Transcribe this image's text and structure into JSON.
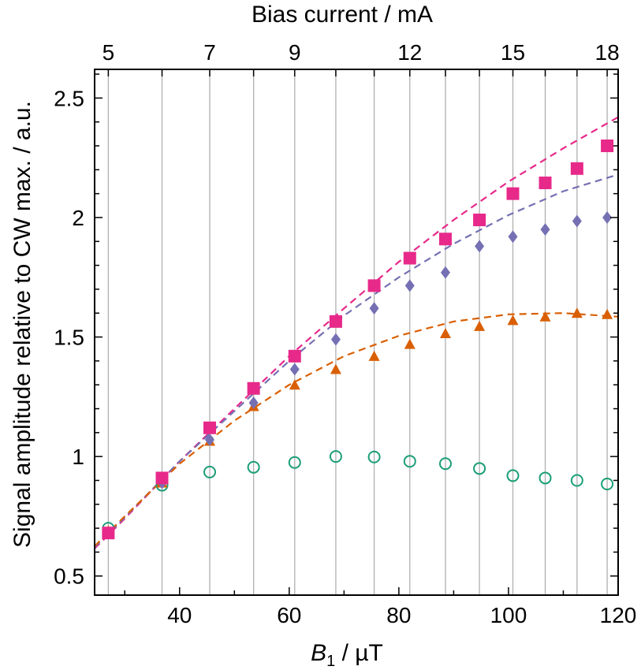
{
  "chart_data": {
    "type": "scatter",
    "title": "",
    "xlabel": "B",
    "xlabel_subscript": "1",
    "xlabel_unit": " / µT",
    "ylabel": "Signal amplitude relative to CW max. / a.u.",
    "top_xlabel": "Bias current / mA",
    "xlim": [
      24.5,
      120
    ],
    "ylim": [
      0.42,
      2.62
    ],
    "x_ticks": [
      40,
      60,
      80,
      100,
      120
    ],
    "x_tick_labels": [
      "40",
      "60",
      "80",
      "100",
      "120"
    ],
    "y_ticks": [
      0.5,
      1,
      1.5,
      2,
      2.5
    ],
    "y_tick_labels": [
      "0.5",
      "1",
      "1.5",
      "2",
      "2.5"
    ],
    "top_ticks": [
      {
        "x": 27.0,
        "label": "5"
      },
      {
        "x": 36.8,
        "label": ""
      },
      {
        "x": 45.5,
        "label": "7"
      },
      {
        "x": 53.5,
        "label": ""
      },
      {
        "x": 61.0,
        "label": "9"
      },
      {
        "x": 68.5,
        "label": ""
      },
      {
        "x": 75.5,
        "label": ""
      },
      {
        "x": 82.0,
        "label": "12"
      },
      {
        "x": 88.5,
        "label": ""
      },
      {
        "x": 94.7,
        "label": ""
      },
      {
        "x": 100.8,
        "label": "15"
      },
      {
        "x": 106.7,
        "label": ""
      },
      {
        "x": 112.5,
        "label": ""
      },
      {
        "x": 118.0,
        "label": "18"
      }
    ],
    "grid": "vertical at bias-current ticks",
    "series": [
      {
        "marker": "square",
        "color": "#e7298a",
        "x": [
          27.0,
          36.8,
          45.5,
          53.5,
          61.0,
          68.5,
          75.5,
          82.0,
          88.5,
          94.7,
          100.8,
          106.7,
          112.5,
          118.0
        ],
        "y": [
          0.68,
          0.91,
          1.12,
          1.285,
          1.42,
          1.565,
          1.715,
          1.83,
          1.91,
          1.99,
          2.1,
          2.145,
          2.205,
          2.3
        ],
        "fit_x": [
          24.5,
          30,
          40,
          50,
          60,
          70,
          80,
          90,
          100,
          110,
          120
        ],
        "fit_y": [
          0.615,
          0.74,
          0.98,
          1.2,
          1.42,
          1.62,
          1.815,
          1.99,
          2.15,
          2.29,
          2.42
        ]
      },
      {
        "marker": "diamond",
        "color": "#7570b3",
        "x": [
          27.0,
          36.8,
          45.5,
          53.5,
          61.0,
          68.5,
          75.5,
          82.0,
          88.5,
          94.7,
          100.8,
          106.7,
          112.5,
          118.0
        ],
        "y": [
          0.68,
          0.89,
          1.07,
          1.225,
          1.365,
          1.49,
          1.62,
          1.715,
          1.77,
          1.88,
          1.92,
          1.95,
          1.985,
          2.0
        ],
        "fit_x": [
          24.5,
          30,
          40,
          50,
          60,
          70,
          80,
          90,
          100,
          110,
          120
        ],
        "fit_y": [
          0.62,
          0.745,
          0.98,
          1.19,
          1.4,
          1.59,
          1.75,
          1.89,
          2.01,
          2.11,
          2.18
        ]
      },
      {
        "marker": "triangle",
        "color": "#d95f02",
        "x": [
          27.0,
          36.8,
          45.5,
          53.5,
          61.0,
          68.5,
          75.5,
          82.0,
          88.5,
          94.7,
          100.8,
          106.7,
          112.5,
          118.0
        ],
        "y": [
          0.69,
          0.89,
          1.065,
          1.21,
          1.3,
          1.365,
          1.42,
          1.47,
          1.515,
          1.545,
          1.57,
          1.585,
          1.6,
          1.595
        ],
        "fit_x": [
          24.5,
          30,
          40,
          50,
          60,
          70,
          80,
          90,
          100,
          110,
          120
        ],
        "fit_y": [
          0.625,
          0.75,
          0.97,
          1.15,
          1.3,
          1.42,
          1.505,
          1.565,
          1.595,
          1.6,
          1.585
        ]
      },
      {
        "marker": "circle-open",
        "color": "#1b9e77",
        "x": [
          27.0,
          36.8,
          45.5,
          53.5,
          61.0,
          68.5,
          75.5,
          82.0,
          88.5,
          94.7,
          100.8,
          106.7,
          112.5,
          118.0
        ],
        "y": [
          0.7,
          0.88,
          0.935,
          0.955,
          0.975,
          1.0,
          0.998,
          0.98,
          0.97,
          0.95,
          0.92,
          0.91,
          0.9,
          0.885
        ]
      }
    ]
  }
}
